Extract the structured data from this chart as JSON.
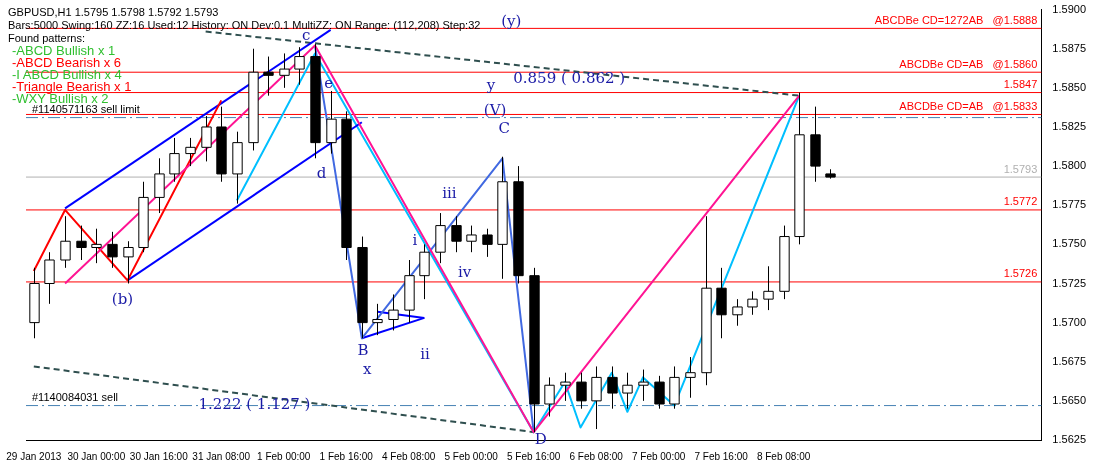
{
  "chart_data": {
    "type": "candlestick",
    "categories": [
      "29 Jan 2013",
      null,
      null,
      null,
      "30 Jan 00:00",
      null,
      null,
      null,
      "30 Jan 16:00",
      null,
      null,
      null,
      "31 Jan 08:00",
      null,
      null,
      null,
      "1 Feb 00:00",
      null,
      null,
      null,
      "1 Feb 16:00",
      null,
      null,
      null,
      "4 Feb 08:00",
      null,
      null,
      null,
      "5 Feb 00:00",
      null,
      null,
      null,
      "5 Feb 16:00",
      null,
      null,
      null,
      "6 Feb 08:00",
      null,
      null,
      null,
      "7 Feb 00:00",
      null,
      null,
      null,
      "7 Feb 16:00",
      null,
      null,
      null,
      "8 Feb 08:00",
      null,
      null,
      null,
      null,
      null,
      null,
      null,
      null,
      null,
      null,
      null,
      null,
      null,
      null,
      null,
      null
    ],
    "ohlc": [
      [
        1.57,
        1.5735,
        1.569,
        1.5725
      ],
      [
        1.5725,
        1.5745,
        1.5712,
        1.574
      ],
      [
        1.574,
        1.5768,
        1.5735,
        1.5752
      ],
      [
        1.5752,
        1.5762,
        1.574,
        1.5748
      ],
      [
        1.5748,
        1.576,
        1.5738,
        1.575
      ],
      [
        1.575,
        1.5758,
        1.5735,
        1.5742
      ],
      [
        1.5742,
        1.5752,
        1.5725,
        1.5748
      ],
      [
        1.5748,
        1.579,
        1.5745,
        1.578
      ],
      [
        1.578,
        1.5805,
        1.577,
        1.5795
      ],
      [
        1.5795,
        1.5818,
        1.579,
        1.5808
      ],
      [
        1.5808,
        1.5818,
        1.58,
        1.5812
      ],
      [
        1.5812,
        1.5832,
        1.5803,
        1.5825
      ],
      [
        1.5825,
        1.5838,
        1.579,
        1.5795
      ],
      [
        1.5795,
        1.5822,
        1.5776,
        1.5815
      ],
      [
        1.5815,
        1.5875,
        1.581,
        1.586
      ],
      [
        1.586,
        1.587,
        1.5845,
        1.5858
      ],
      [
        1.5858,
        1.5872,
        1.585,
        1.5862
      ],
      [
        1.5862,
        1.5876,
        1.5852,
        1.587
      ],
      [
        1.587,
        1.5878,
        1.5805,
        1.5815
      ],
      [
        1.5815,
        1.5848,
        1.5808,
        1.583
      ],
      [
        1.583,
        1.5835,
        1.574,
        1.5748
      ],
      [
        1.5748,
        1.5755,
        1.569,
        1.57
      ],
      [
        1.57,
        1.5712,
        1.5692,
        1.5702
      ],
      [
        1.5702,
        1.5718,
        1.5695,
        1.5708
      ],
      [
        1.5708,
        1.574,
        1.57,
        1.573
      ],
      [
        1.573,
        1.575,
        1.5715,
        1.5745
      ],
      [
        1.5745,
        1.577,
        1.5738,
        1.5762
      ],
      [
        1.5762,
        1.5768,
        1.5745,
        1.5752
      ],
      [
        1.5752,
        1.5762,
        1.5745,
        1.5756
      ],
      [
        1.5756,
        1.576,
        1.5742,
        1.575
      ],
      [
        1.575,
        1.5806,
        1.5728,
        1.579
      ],
      [
        1.579,
        1.58,
        1.5725,
        1.573
      ],
      [
        1.573,
        1.5735,
        1.563,
        1.5648
      ],
      [
        1.5648,
        1.5665,
        1.564,
        1.566
      ],
      [
        1.566,
        1.5668,
        1.565,
        1.5662
      ],
      [
        1.5662,
        1.5668,
        1.5645,
        1.565
      ],
      [
        1.565,
        1.5672,
        1.5632,
        1.5665
      ],
      [
        1.5665,
        1.5672,
        1.5645,
        1.5655
      ],
      [
        1.5655,
        1.5668,
        1.5645,
        1.566
      ],
      [
        1.566,
        1.567,
        1.565,
        1.5662
      ],
      [
        1.5662,
        1.5666,
        1.5645,
        1.5648
      ],
      [
        1.5648,
        1.5672,
        1.5645,
        1.5665
      ],
      [
        1.5665,
        1.5678,
        1.5652,
        1.5668
      ],
      [
        1.5668,
        1.5768,
        1.566,
        1.5722
      ],
      [
        1.5722,
        1.5735,
        1.569,
        1.5705
      ],
      [
        1.5705,
        1.5715,
        1.5698,
        1.571
      ],
      [
        1.571,
        1.572,
        1.5705,
        1.5715
      ],
      [
        1.5715,
        1.5736,
        1.5708,
        1.572
      ],
      [
        1.572,
        1.5762,
        1.5715,
        1.5755
      ],
      [
        1.5755,
        1.5847,
        1.575,
        1.582
      ],
      [
        1.582,
        1.5838,
        1.579,
        1.58
      ],
      [
        1.5795,
        1.5798,
        1.5792,
        1.5793
      ],
      null,
      null,
      null,
      null,
      null,
      null,
      null,
      null,
      null,
      null,
      null,
      null,
      null
    ],
    "series": [
      {
        "type": "line",
        "color": "#ff1493",
        "values": [
          null,
          null,
          1.5725,
          null,
          null,
          null,
          null,
          null,
          null,
          null,
          null,
          null,
          null,
          null,
          null,
          null,
          null,
          null,
          1.5877,
          null,
          null,
          null,
          null,
          null,
          null,
          null,
          null,
          null,
          null,
          null,
          null,
          null,
          1.563,
          null,
          null,
          null,
          null,
          null,
          null,
          null,
          null,
          null,
          null,
          null,
          null,
          null,
          null,
          null,
          null,
          1.5845,
          null,
          null,
          null,
          null,
          null,
          null,
          null,
          null,
          null,
          null,
          null,
          null,
          null,
          null,
          null
        ]
      },
      {
        "type": "line",
        "color": "#ff0000",
        "values": [
          1.5733,
          null,
          1.5772,
          null,
          null,
          null,
          1.5727,
          null,
          null,
          null,
          null,
          null,
          1.5842,
          null,
          null,
          null,
          null,
          null,
          null,
          null,
          null,
          null,
          null,
          null,
          null,
          null,
          null,
          null,
          null,
          null,
          null,
          null,
          null,
          null,
          null,
          null,
          null,
          null,
          null,
          null,
          null,
          null,
          null,
          null,
          null,
          null,
          null,
          null,
          null,
          null,
          null,
          null,
          null,
          null,
          null,
          null,
          null,
          null,
          null,
          null,
          null,
          null,
          null,
          null,
          null
        ]
      },
      {
        "type": "line",
        "color": "#0000ff",
        "values": [
          null,
          null,
          1.5773,
          null,
          null,
          null,
          null,
          null,
          null,
          null,
          null,
          null,
          null,
          null,
          null,
          null,
          null,
          null,
          null,
          1.5887,
          null,
          null,
          null,
          null,
          null,
          null,
          null,
          null,
          null,
          null,
          null,
          null,
          null,
          null,
          null,
          null,
          null,
          null,
          null,
          null,
          null,
          null,
          null,
          null,
          null,
          null,
          null,
          null,
          null,
          null,
          null,
          null,
          null,
          null,
          null,
          null,
          null,
          null,
          null,
          null,
          null,
          null,
          null,
          null,
          null
        ]
      },
      {
        "type": "line",
        "color": "#0000ff",
        "values": [
          null,
          null,
          null,
          null,
          null,
          null,
          1.5727,
          null,
          null,
          null,
          null,
          null,
          null,
          null,
          null,
          null,
          null,
          null,
          null,
          null,
          null,
          1.5828,
          null,
          null,
          null,
          null,
          null,
          null,
          null,
          null,
          null,
          null,
          null,
          null,
          null,
          null,
          null,
          null,
          null,
          null,
          null,
          null,
          null,
          null,
          null,
          null,
          null,
          null,
          null,
          null,
          null,
          null,
          null,
          null,
          null,
          null,
          null,
          null,
          null,
          null,
          null,
          null,
          null,
          null,
          null
        ]
      },
      {
        "type": "line",
        "color": "#4169e1",
        "values": [
          null,
          null,
          null,
          null,
          null,
          null,
          null,
          null,
          null,
          null,
          null,
          null,
          null,
          null,
          null,
          null,
          null,
          null,
          1.5877,
          null,
          null,
          1.569,
          null,
          null,
          null,
          null,
          null,
          null,
          null,
          null,
          1.5805,
          null,
          1.563,
          null,
          null,
          null,
          null,
          null,
          null,
          null,
          null,
          null,
          null,
          null,
          null,
          null,
          null,
          null,
          null,
          null,
          null,
          null,
          null,
          null,
          null,
          null,
          null,
          null,
          null,
          null,
          null,
          null,
          null,
          null,
          null
        ]
      },
      {
        "type": "line",
        "color": "#0000ff",
        "values": [
          null,
          null,
          null,
          null,
          null,
          null,
          null,
          null,
          null,
          null,
          null,
          null,
          null,
          null,
          null,
          null,
          null,
          null,
          null,
          null,
          null,
          null,
          1.5707,
          null,
          null,
          1.5703,
          null,
          null,
          null,
          null,
          null,
          null,
          null,
          null,
          null,
          null,
          null,
          null,
          null,
          null,
          null,
          null,
          null,
          null,
          null,
          null,
          null,
          null,
          null,
          null,
          null,
          null,
          null,
          null,
          null,
          null,
          null,
          null,
          null,
          null,
          null,
          null,
          null,
          null,
          null
        ]
      },
      {
        "type": "line",
        "color": "#0000ff",
        "values": [
          null,
          null,
          null,
          null,
          null,
          null,
          null,
          null,
          null,
          null,
          null,
          null,
          null,
          null,
          null,
          null,
          null,
          null,
          null,
          null,
          null,
          1.569,
          null,
          null,
          null,
          1.5703,
          null,
          null,
          null,
          null,
          null,
          null,
          null,
          null,
          null,
          null,
          null,
          null,
          null,
          null,
          null,
          null,
          null,
          null,
          null,
          null,
          null,
          null,
          null,
          null,
          null,
          null,
          null,
          null,
          null,
          null,
          null,
          null,
          null,
          null,
          null,
          null,
          null,
          null,
          null
        ]
      },
      {
        "type": "line",
        "color": "#00bfff",
        "values": [
          null,
          null,
          null,
          null,
          null,
          null,
          null,
          null,
          null,
          null,
          null,
          null,
          null,
          1.5778,
          null,
          null,
          null,
          null,
          1.5872,
          null,
          null,
          null,
          null,
          null,
          null,
          null,
          null,
          null,
          null,
          null,
          null,
          null,
          1.563,
          null,
          1.5662,
          1.5633,
          null,
          1.5668,
          1.5643,
          1.5665,
          null,
          1.5647,
          null,
          null,
          null,
          null,
          null,
          null,
          null,
          1.5845,
          null,
          null,
          null,
          null,
          null,
          null,
          null,
          null,
          null,
          null,
          null,
          null,
          null,
          null,
          null
        ]
      },
      {
        "type": "line",
        "color": "#2f4f4f",
        "line_style": "dashed",
        "values": [
          null,
          null,
          null,
          null,
          null,
          null,
          null,
          null,
          null,
          null,
          null,
          1.5886,
          null,
          null,
          null,
          null,
          null,
          null,
          null,
          null,
          null,
          null,
          null,
          null,
          null,
          null,
          null,
          null,
          null,
          null,
          null,
          null,
          null,
          null,
          null,
          null,
          null,
          null,
          null,
          null,
          null,
          null,
          null,
          null,
          null,
          null,
          null,
          null,
          null,
          1.5845,
          null,
          null,
          null,
          null,
          null,
          null,
          null,
          null,
          null,
          null,
          null,
          null,
          null,
          null,
          null
        ]
      },
      {
        "type": "line",
        "color": "#2f4f4f",
        "line_style": "dashed",
        "values": [
          1.5672,
          null,
          null,
          null,
          null,
          null,
          null,
          null,
          null,
          null,
          null,
          null,
          null,
          null,
          null,
          null,
          null,
          null,
          null,
          null,
          null,
          null,
          null,
          null,
          null,
          null,
          null,
          null,
          null,
          null,
          null,
          null,
          1.563,
          null,
          null,
          null,
          null,
          null,
          null,
          null,
          null,
          null,
          null,
          null,
          null,
          null,
          null,
          null,
          null,
          null,
          null,
          null,
          null,
          null,
          null,
          null,
          null,
          null,
          null,
          null,
          null,
          null,
          null,
          null,
          null
        ]
      }
    ],
    "ylim": [
      1.5625,
      1.59
    ],
    "yticks": [
      {
        "value": 1.5625,
        "label": "1.5625"
      },
      {
        "value": 1.565,
        "label": "1.5650"
      },
      {
        "value": 1.5675,
        "label": "1.5675"
      },
      {
        "value": 1.57,
        "label": "1.5700"
      },
      {
        "value": 1.5725,
        "label": "1.5725"
      },
      {
        "value": 1.575,
        "label": "1.5750"
      },
      {
        "value": 1.5775,
        "label": "1.5775"
      },
      {
        "value": 1.58,
        "label": "1.5800"
      },
      {
        "value": 1.5825,
        "label": "1.5825"
      },
      {
        "value": 1.585,
        "label": "1.5850"
      },
      {
        "value": 1.5875,
        "label": "1.5875"
      },
      {
        "value": 1.59,
        "label": "1.5900"
      }
    ],
    "ref_lines": [
      {
        "axis": "y",
        "value": 1.5888,
        "label": "ABCDBe CD=1272AB   @1.5888",
        "color": "#ff0000"
      },
      {
        "axis": "y",
        "value": 1.586,
        "label": "ABCDBe CD=AB   @1.5860",
        "color": "#ff0000"
      },
      {
        "axis": "y",
        "value": 1.5847,
        "label": "1.5847",
        "color": "#ff0000"
      },
      {
        "axis": "y",
        "value": 1.5833,
        "label": "ABCDBe CD=AB   @1.5833",
        "color": "#ff0000"
      },
      {
        "axis": "y",
        "value": 1.5831,
        "label": "#1140571163 sell limit",
        "color": "#4682b4",
        "line_style": "dashed"
      },
      {
        "axis": "y",
        "value": 1.5793,
        "label": "1.5793",
        "color": "#b0b0b0"
      },
      {
        "axis": "y",
        "value": 1.5772,
        "label": "1.5772",
        "color": "#ff0000"
      },
      {
        "axis": "y",
        "value": 1.5726,
        "label": "1.5726",
        "color": "#ff0000"
      },
      {
        "axis": "y",
        "value": 1.5647,
        "label": "#1140084031 sell",
        "color": "#4682b4",
        "line_style": "dashed"
      }
    ],
    "annotations": [
      "GBPUSD,H1  1.5795 1.5798 1.5792 1.5793",
      "Bars:5000  Swing:160  ZZ:16  Used:12  History: ON Dev:0.1  MultiZZ: ON  Range: (112,208)  Step:32",
      "Found patterns:",
      "-ABCD Bullish x 1",
      "-ABCD Bearish x 6",
      "-I ABCD Bullish x 4",
      "-Triangle Bearish x 1",
      "-WXY Bullish x 2",
      "(y)",
      "y",
      "(V)",
      "C",
      "B",
      "x",
      "D",
      "(b)",
      "c",
      "e",
      "d",
      "i",
      "ii",
      "iii",
      "iv",
      "0.859 ( 0.862 )",
      "1.222 ( 1.127 )"
    ],
    "grid": false,
    "legend": false
  }
}
